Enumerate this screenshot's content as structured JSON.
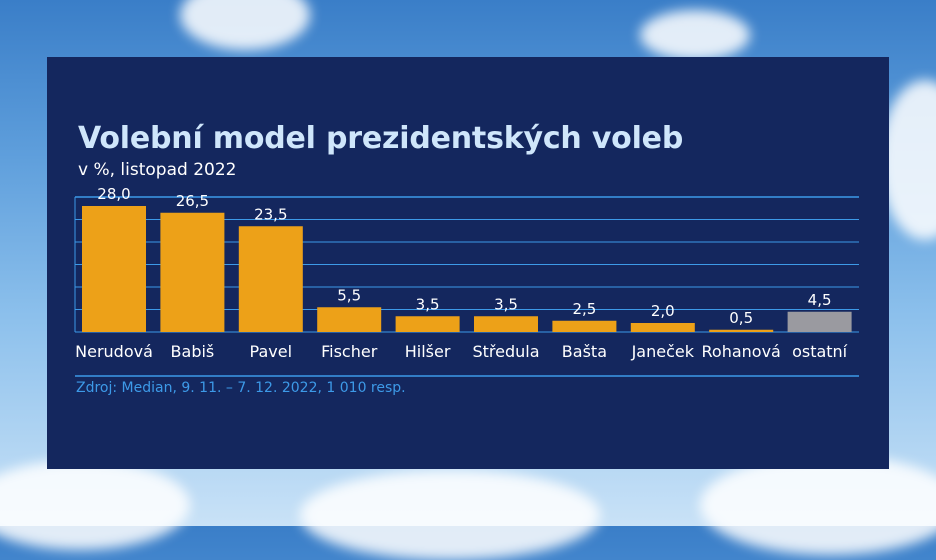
{
  "chart_data": {
    "type": "bar",
    "title": "Volební model prezidentských voleb",
    "subtitle": "v %, listopad 2022",
    "categories": [
      "Nerudová",
      "Babiš",
      "Pavel",
      "Fischer",
      "Hilšer",
      "Středula",
      "Bašta",
      "Janeček",
      "Rohanová",
      "ostatní"
    ],
    "values": [
      28.0,
      26.5,
      23.5,
      5.5,
      3.5,
      3.5,
      2.5,
      2.0,
      0.5,
      4.5
    ],
    "value_labels": [
      "28,0",
      "26,5",
      "23,5",
      "5,5",
      "3,5",
      "3,5",
      "2,5",
      "2,0",
      "0,5",
      "4,5"
    ],
    "colors": [
      "#eda118",
      "#eda118",
      "#eda118",
      "#eda118",
      "#eda118",
      "#eda118",
      "#eda118",
      "#eda118",
      "#eda118",
      "#9a9aa0"
    ],
    "ylim": [
      0,
      30
    ],
    "grid": true,
    "source": "Zdroj: Median, 9. 11. – 7. 12. 2022, 1 010 resp."
  }
}
